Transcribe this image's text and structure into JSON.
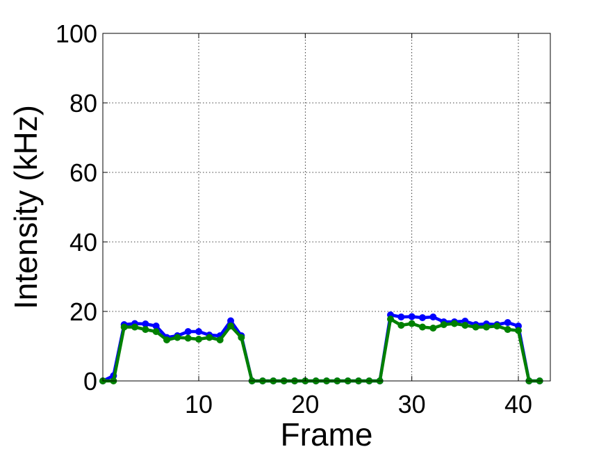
{
  "chart_data": {
    "type": "line",
    "xlabel": "Frame",
    "ylabel": "Intensity (kHz)",
    "xlim": [
      1,
      43
    ],
    "ylim": [
      0,
      100
    ],
    "xticks": [
      10,
      20,
      30,
      40
    ],
    "yticks": [
      0,
      20,
      40,
      60,
      80,
      100
    ],
    "grid": true,
    "x": [
      1,
      2,
      3,
      4,
      5,
      6,
      7,
      8,
      9,
      10,
      11,
      12,
      13,
      14,
      15,
      16,
      17,
      18,
      19,
      20,
      21,
      22,
      23,
      24,
      25,
      26,
      27,
      28,
      29,
      30,
      31,
      32,
      33,
      34,
      35,
      36,
      37,
      38,
      39,
      40,
      41,
      42
    ],
    "series": [
      {
        "color": "#0000ff",
        "values": [
          0,
          1.5,
          16.2,
          16.5,
          16.4,
          15.8,
          12.5,
          13,
          14.2,
          14.2,
          13.2,
          13,
          17.3,
          13,
          0,
          0,
          0,
          0,
          0,
          0,
          0,
          0,
          0,
          0,
          0,
          0,
          0,
          19,
          18.4,
          18.5,
          18.2,
          18.4,
          17,
          17,
          17.2,
          16.2,
          16.4,
          16.2,
          16.8,
          15.8,
          0,
          0
        ]
      },
      {
        "color": "#008000",
        "values": [
          0,
          0,
          15.5,
          15.5,
          14.8,
          14.2,
          11.8,
          12.5,
          12.3,
          12,
          12.5,
          11.8,
          15.8,
          12.5,
          0,
          0,
          0,
          0,
          0,
          0,
          0,
          0,
          0,
          0,
          0,
          0,
          0,
          17.8,
          16,
          16.5,
          15.5,
          15.2,
          16.2,
          16.5,
          16,
          15.5,
          15.5,
          15.8,
          14.8,
          14.5,
          0,
          0
        ]
      }
    ]
  }
}
